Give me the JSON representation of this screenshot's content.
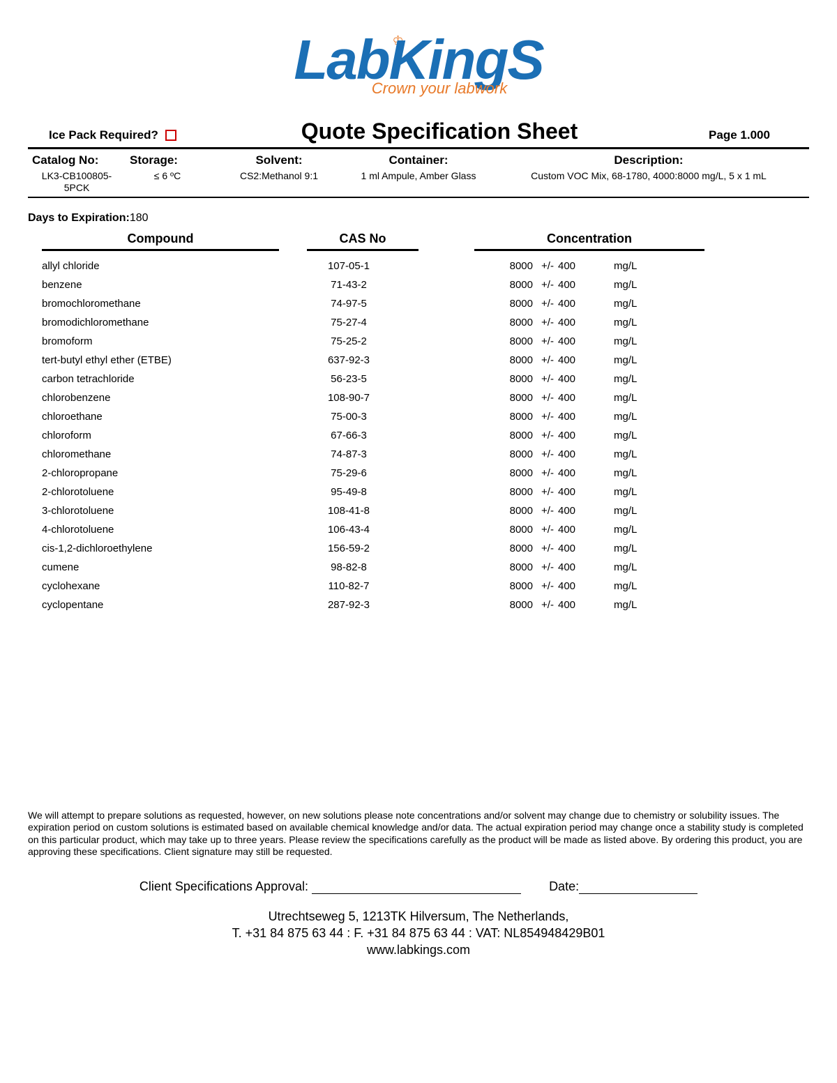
{
  "logo": {
    "brand_l": "L",
    "brand_ab": "ab",
    "brand_k": "K",
    "brand_ing": "ing",
    "brand_s": "S",
    "tagline": "Crown your labwork",
    "brand_color": "#1b6fb5",
    "accent_color": "#e87a2a"
  },
  "header": {
    "ice_pack_label": "Ice Pack Required?",
    "title": "Quote Specification Sheet",
    "page_label": "Page 1.000"
  },
  "meta": {
    "catalog_label": "Catalog No:",
    "catalog_value": "LK3-CB100805-5PCK",
    "storage_label": "Storage:",
    "storage_value": "≤ 6 ºC",
    "solvent_label": "Solvent:",
    "solvent_value": "CS2:Methanol 9:1",
    "container_label": "Container:",
    "container_value": "1 ml Ampule, Amber Glass",
    "description_label": "Description:",
    "description_value": "Custom VOC Mix, 68-1780, 4000:8000 mg/L, 5 x 1 mL"
  },
  "expiry": {
    "label": "Days to Expiration:",
    "value": "180"
  },
  "table": {
    "col_compound": "Compound",
    "col_cas": "CAS No",
    "col_conc": "Concentration",
    "pm_symbol": "+/-",
    "unit": "mg/L",
    "rows": [
      {
        "compound": "allyl chloride",
        "cas": "107-05-1",
        "conc": "8000",
        "tol": "400"
      },
      {
        "compound": "benzene",
        "cas": "71-43-2",
        "conc": "8000",
        "tol": "400"
      },
      {
        "compound": "bromochloromethane",
        "cas": "74-97-5",
        "conc": "8000",
        "tol": "400"
      },
      {
        "compound": "bromodichloromethane",
        "cas": "75-27-4",
        "conc": "8000",
        "tol": "400"
      },
      {
        "compound": "bromoform",
        "cas": "75-25-2",
        "conc": "8000",
        "tol": "400"
      },
      {
        "compound": "tert-butyl ethyl ether (ETBE)",
        "cas": "637-92-3",
        "conc": "8000",
        "tol": "400"
      },
      {
        "compound": "carbon tetrachloride",
        "cas": "56-23-5",
        "conc": "8000",
        "tol": "400"
      },
      {
        "compound": "chlorobenzene",
        "cas": "108-90-7",
        "conc": "8000",
        "tol": "400"
      },
      {
        "compound": "chloroethane",
        "cas": "75-00-3",
        "conc": "8000",
        "tol": "400"
      },
      {
        "compound": "chloroform",
        "cas": "67-66-3",
        "conc": "8000",
        "tol": "400"
      },
      {
        "compound": "chloromethane",
        "cas": "74-87-3",
        "conc": "8000",
        "tol": "400"
      },
      {
        "compound": "2-chloropropane",
        "cas": "75-29-6",
        "conc": "8000",
        "tol": "400"
      },
      {
        "compound": "2-chlorotoluene",
        "cas": "95-49-8",
        "conc": "8000",
        "tol": "400"
      },
      {
        "compound": "3-chlorotoluene",
        "cas": "108-41-8",
        "conc": "8000",
        "tol": "400"
      },
      {
        "compound": "4-chlorotoluene",
        "cas": "106-43-4",
        "conc": "8000",
        "tol": "400"
      },
      {
        "compound": "cis-1,2-dichloroethylene",
        "cas": "156-59-2",
        "conc": "8000",
        "tol": "400"
      },
      {
        "compound": "cumene",
        "cas": "98-82-8",
        "conc": "8000",
        "tol": "400"
      },
      {
        "compound": "cyclohexane",
        "cas": "110-82-7",
        "conc": "8000",
        "tol": "400"
      },
      {
        "compound": "cyclopentane",
        "cas": "287-92-3",
        "conc": "8000",
        "tol": "400"
      }
    ]
  },
  "disclaimer": "We will attempt to prepare solutions as requested, however, on new solutions please note concentrations and/or solvent may change due to chemistry or solubility issues. The expiration period on custom solutions is estimated based on available chemical knowledge and/or data. The actual expiration period may change once a stability study is completed on this particular product, which may take up to three years. Please review the specifications carefully as the product will be made as listed above. By ordering this product, you are approving these specifications. Client signature may still be requested.",
  "signature": {
    "approval_label": "Client Specifications Approval:",
    "date_label": "Date:"
  },
  "footer": {
    "address": "Utrechtseweg 5, 1213TK Hilversum, The Netherlands,",
    "contact": "T. +31 84 875 63 44 : F. +31 84 875 63 44 : VAT: NL854948429B01",
    "web": "www.labkings.com"
  }
}
